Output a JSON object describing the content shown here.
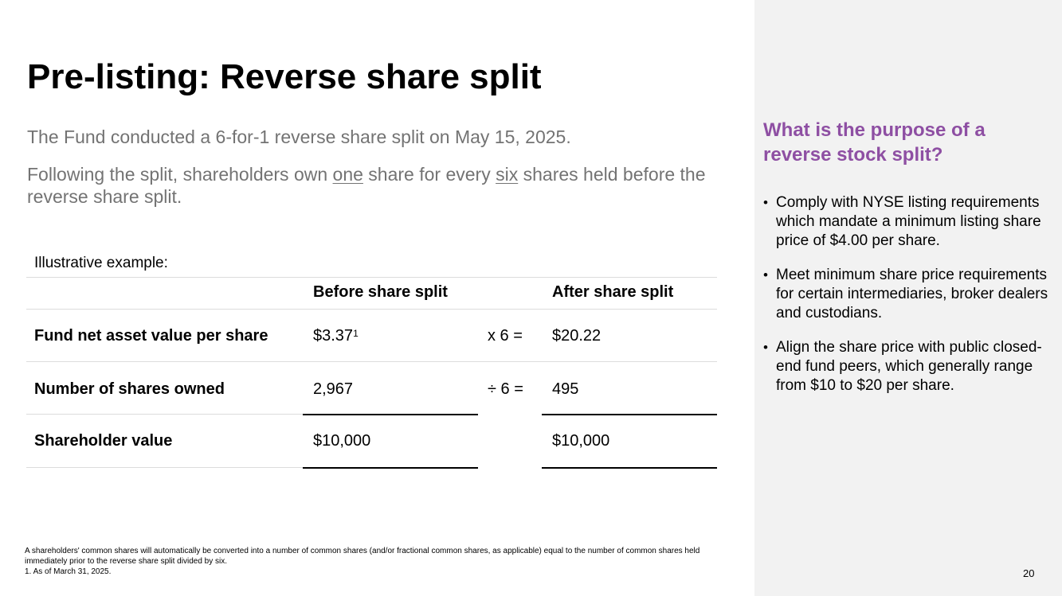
{
  "title": "Pre-listing: Reverse share split",
  "intro": {
    "line1": "The Fund conducted a 6-for-1 reverse share split on May 15, 2025.",
    "line2_a": "Following the split, shareholders own ",
    "line2_one": "one",
    "line2_b": " share for every ",
    "line2_six": "six",
    "line2_c": " shares held before the reverse share split."
  },
  "table": {
    "caption": "Illustrative example:",
    "col_before": "Before share split",
    "col_after": "After share split",
    "rows": [
      {
        "label": "Fund net asset value per share",
        "before": "$3.37",
        "before_sup": "1",
        "op": "x 6 =",
        "after": "$20.22"
      },
      {
        "label": "Number of shares owned",
        "before": "2,967",
        "op": "÷ 6 =",
        "after": "495"
      },
      {
        "label": "Shareholder value",
        "before": "$10,000",
        "op": "",
        "after": "$10,000"
      }
    ]
  },
  "footnotes": {
    "note": "A shareholders' common shares will automatically be converted into a number of common shares (and/or fractional common shares, as applicable) equal to the number of common shares held immediately prior to the reverse share split divided by six.",
    "note1": "1. As of March 31, 2025."
  },
  "side": {
    "title": "What is the purpose of a reverse stock split?",
    "bullets": [
      "Comply with NYSE listing requirements which mandate a minimum listing share price of $4.00 per share.",
      "Meet minimum share price requirements for certain intermediaries, broker dealers and custodians.",
      "Align the share price with public closed-end fund peers, which generally range from $10 to $20 per share."
    ],
    "bullet_char": "•"
  },
  "page_number": "20",
  "colors": {
    "accent": "#8e4fa3",
    "body_gray": "#737373",
    "panel": "#f2f2f2"
  }
}
